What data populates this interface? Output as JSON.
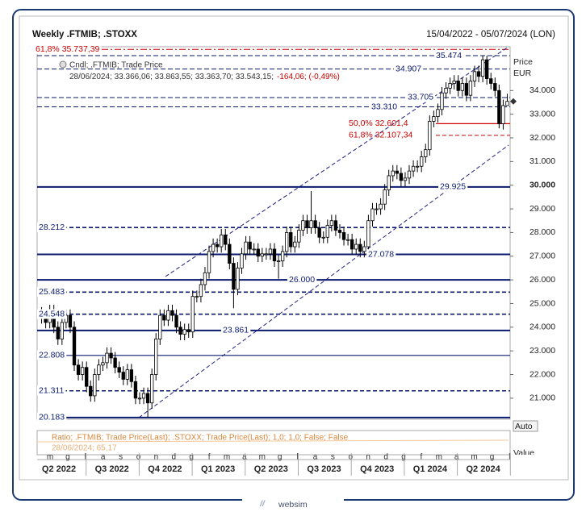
{
  "chart_data": {
    "type": "candlestick",
    "title": "Weekly .FTMIB; .STOXX",
    "date_range": "15/04/2022 - 05/07/2024 (LON)",
    "legend": {
      "series": "Cndl; .FTMIB; Trade Price",
      "last": "28/06/2024; 33.366,06; 33.863,55; 33.363,70; 33.543,15;",
      "change": "-164,06; (-0,49%)"
    },
    "y_axis_label": "Price",
    "y_axis_unit": "EUR",
    "ylim": [
      20110,
      35850
    ],
    "yticks": [
      {
        "value": 21000,
        "label": "21.000"
      },
      {
        "value": 22000,
        "label": "22.000"
      },
      {
        "value": 23000,
        "label": "23.000"
      },
      {
        "value": 24000,
        "label": "24.000"
      },
      {
        "value": 25000,
        "label": "25.000"
      },
      {
        "value": 26000,
        "label": "26.000"
      },
      {
        "value": 27000,
        "label": "27.000"
      },
      {
        "value": 28000,
        "label": "28.000"
      },
      {
        "value": 29000,
        "label": "29.000"
      },
      {
        "value": 30000,
        "label": "30.000"
      },
      {
        "value": 31000,
        "label": "31.000"
      },
      {
        "value": 32000,
        "label": "32.000"
      },
      {
        "value": 33000,
        "label": "33.000"
      },
      {
        "value": 34000,
        "label": "34.000"
      }
    ],
    "up_color": "#ffffff",
    "down_color": "#000000",
    "open": [
      24600,
      24400,
      24200,
      24700,
      24000,
      23500,
      24200,
      24500,
      24000,
      22400,
      22000,
      22300,
      21500,
      21100,
      22000,
      22400,
      22500,
      22900,
      22700,
      22300,
      22100,
      21800,
      22200,
      21700,
      21000,
      21000,
      21200,
      20800,
      22000,
      23500,
      24500,
      24300,
      24700,
      24500,
      24000,
      23700,
      23900,
      23800,
      25300,
      25300,
      25800,
      26300,
      27200,
      27500,
      27400,
      27900,
      27500,
      26700,
      25600,
      26500,
      27100,
      27600,
      27300,
      27300,
      27000,
      27100,
      27100,
      27300,
      26800,
      26800,
      27200,
      28000,
      27400,
      27600,
      28100,
      28500,
      28200,
      28500,
      28200,
      27800,
      27800,
      28300,
      28500,
      28100,
      28000,
      27700,
      27700,
      27300,
      27500,
      27200,
      27400,
      28500,
      29000,
      29000,
      29200,
      29800,
      30400,
      30600,
      30500,
      30200,
      30300,
      30600,
      30800,
      30800,
      31200,
      31500,
      32700,
      32900,
      33200,
      33900,
      34100,
      34300,
      34400,
      34000,
      34300,
      33800,
      34400,
      34800,
      34600,
      35300,
      34500,
      34300,
      34000,
      32600,
      33366.06
    ],
    "high": [
      24850,
      24650,
      24950,
      24950,
      24250,
      24450,
      24750,
      24750,
      24250,
      22650,
      22550,
      22550,
      21750,
      22250,
      22650,
      22750,
      23150,
      23150,
      22950,
      22550,
      22350,
      22450,
      22450,
      21950,
      21250,
      21450,
      21450,
      22250,
      23750,
      24750,
      24750,
      24950,
      24950,
      24750,
      24250,
      24150,
      24150,
      25550,
      25550,
      26050,
      26550,
      27450,
      27750,
      27750,
      28150,
      28150,
      27750,
      26950,
      26750,
      27350,
      27850,
      27850,
      27550,
      27550,
      27350,
      27350,
      27550,
      27550,
      27050,
      27450,
      28250,
      28250,
      27850,
      28350,
      28750,
      28750,
      29750,
      28750,
      28450,
      28050,
      28550,
      28750,
      28750,
      28350,
      28250,
      27950,
      27950,
      27750,
      27750,
      27650,
      28750,
      29250,
      29250,
      29450,
      30050,
      30650,
      30850,
      30850,
      30750,
      30550,
      30850,
      31050,
      31050,
      31450,
      31750,
      32950,
      33150,
      33450,
      34150,
      34350,
      34550,
      34650,
      34650,
      34550,
      34550,
      34650,
      35050,
      35050,
      35470,
      35470,
      34750,
      34550,
      34250,
      33616,
      33863.55
    ],
    "low": [
      24150,
      23950,
      23950,
      23750,
      23250,
      23250,
      23950,
      23750,
      22150,
      21750,
      21750,
      21250,
      20850,
      20850,
      21750,
      22150,
      22250,
      22450,
      22050,
      21850,
      21550,
      21550,
      21450,
      20750,
      20750,
      20750,
      20200,
      20550,
      21750,
      23250,
      24050,
      24050,
      24250,
      23750,
      23450,
      23450,
      23550,
      23550,
      25050,
      25050,
      25550,
      26050,
      26950,
      27150,
      27150,
      27250,
      26450,
      24800,
      25350,
      26250,
      26850,
      27050,
      27050,
      26750,
      26750,
      26850,
      26850,
      26550,
      26050,
      26550,
      26950,
      27150,
      27150,
      27350,
      27850,
      27950,
      27950,
      27950,
      27550,
      27550,
      27550,
      28050,
      27850,
      27750,
      27450,
      27450,
      27050,
      27050,
      26950,
      26950,
      27150,
      28250,
      28750,
      28750,
      28950,
      29550,
      30150,
      30250,
      29950,
      29950,
      30050,
      30350,
      30550,
      30550,
      30950,
      31250,
      32450,
      32650,
      32950,
      33650,
      33850,
      34050,
      33750,
      33750,
      33550,
      33550,
      34150,
      34350,
      34350,
      34250,
      34050,
      33750,
      32400,
      32350,
      33363.7
    ],
    "close": [
      24400,
      24200,
      24700,
      24000,
      23500,
      24200,
      24500,
      24000,
      22400,
      22000,
      22300,
      21500,
      21100,
      22000,
      22400,
      22500,
      22900,
      22700,
      22300,
      22100,
      21800,
      22200,
      21700,
      21000,
      21000,
      21200,
      20800,
      22000,
      23500,
      24500,
      24300,
      24700,
      24500,
      24000,
      23700,
      23900,
      23800,
      25300,
      25300,
      25800,
      26300,
      27200,
      27500,
      27400,
      27900,
      27500,
      26700,
      25600,
      26500,
      27100,
      27600,
      27300,
      27300,
      27000,
      27100,
      27100,
      27300,
      26800,
      26800,
      27200,
      28000,
      27400,
      27600,
      28100,
      28500,
      28200,
      28500,
      28200,
      27800,
      27800,
      28300,
      28500,
      28100,
      28000,
      27700,
      27700,
      27300,
      27500,
      27200,
      27400,
      28500,
      29000,
      29000,
      29200,
      29800,
      30400,
      30600,
      30500,
      30200,
      30300,
      30600,
      30800,
      30800,
      31200,
      31500,
      32700,
      32900,
      33200,
      33900,
      34100,
      34300,
      34400,
      34000,
      34300,
      33800,
      34400,
      34800,
      34600,
      35300,
      34500,
      34300,
      34000,
      32600,
      33366,
      33543.15
    ],
    "levels": [
      {
        "value": 20183,
        "label": "20.183",
        "style": "solid",
        "color": "#0a1a6e"
      },
      {
        "value": 21311,
        "label": "21.311",
        "style": "dashed",
        "color": "#0a1a6e"
      },
      {
        "value": 22808,
        "label": "22.808",
        "style": "thin",
        "color": "#0a1a6e"
      },
      {
        "value": 23861,
        "label": "23.861",
        "style": "solid",
        "color": "#0a1a6e"
      },
      {
        "value": 24548,
        "label": "24.548",
        "style": "dashed",
        "color": "#0a1a6e"
      },
      {
        "value": 25483,
        "label": "25.483",
        "style": "dashed",
        "color": "#0a1a6e"
      },
      {
        "value": 26000,
        "label": "26.000",
        "style": "solid",
        "color": "#0a1a6e"
      },
      {
        "value": 27078,
        "label": "27.078",
        "style": "solid",
        "color": "#0a1a6e"
      },
      {
        "value": 28212,
        "label": "28.212",
        "style": "dashed",
        "color": "#0a1a6e"
      },
      {
        "value": 29925,
        "label": "29.925",
        "style": "solid",
        "color": "#0a1a6e"
      },
      {
        "value": 33310,
        "label": "33.310",
        "style": "thindash",
        "color": "#0a1a6e"
      },
      {
        "value": 33705,
        "label": "33.705",
        "style": "thindash",
        "color": "#0a1a6e"
      },
      {
        "value": 34907,
        "label": "34.907",
        "style": "thindash",
        "color": "#0a1a6e"
      },
      {
        "value": 35474,
        "label": "35.474",
        "style": "thindash",
        "color": "#0a1a6e"
      },
      {
        "value": 35737.39,
        "label": "61,8% 35.737,39",
        "style": "dashdot",
        "color": "#cc0000"
      },
      {
        "value": 32601.4,
        "label": "50,0% 32.601,4",
        "style": "short",
        "color": "#cc0000"
      },
      {
        "value": 32107.34,
        "label": "61,8% 32.107,34",
        "style": "shortdash",
        "color": "#cc0000"
      }
    ],
    "months": [
      "m",
      "g",
      "l",
      "a",
      "s",
      "o",
      "n",
      "d",
      "g",
      "f",
      "m",
      "a",
      "m",
      "g",
      "l",
      "a",
      "s",
      "o",
      "n",
      "d",
      "g",
      "f",
      "m",
      "a",
      "m",
      "g",
      "l"
    ],
    "quarters": [
      "Q2 2022",
      "Q3 2022",
      "Q4 2022",
      "Q1 2023",
      "Q2 2023",
      "Q3 2023",
      "Q4 2023",
      "Q1 2024",
      "Q2 2024"
    ],
    "lower_panel": {
      "title": "Ratio; .FTMIB; Trade Price(Last); .STOXX; Trade Price(Last);  1,0; 1,0; False; False",
      "last": "28/06/2024; 65,17",
      "button": "Auto",
      "label": "Value"
    },
    "footer": "websim"
  }
}
